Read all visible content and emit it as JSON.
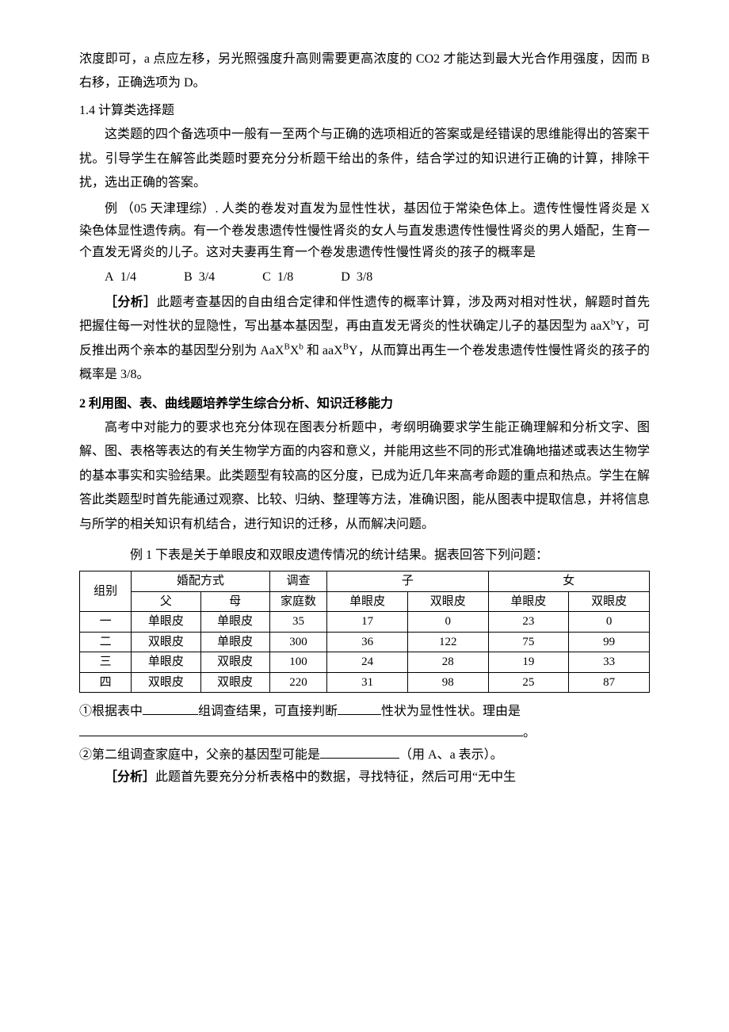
{
  "intro_continuation": "浓度即可，a 点应左移，另光照强度升高则需要更高浓度的 CO2 才能达到最大光合作用强度，因而 B 右移，正确选项为 D。",
  "sec14_title": "1.4 计算类选择题",
  "sec14_para": "这类题的四个备选项中一般有一至两个与正确的选项相近的答案或是经错误的思维能得出的答案干扰。引导学生在解答此类题时要充分分析题干给出的条件，结合学过的知识进行正确的计算，排除干扰，选出正确的答案。",
  "ex14_lead": "例 （05 天津理综）. 人类的卷发对直发为显性性状，基因位于常染色体上。遗传性慢性肾炎是 X 染色体显性遗传病。有一个卷发患遗传性慢性肾炎的女人与直发患遗传性慢性肾炎的男人婚配，生育一个直发无肾炎的儿子。这对夫妻再生育一个卷发患遗传性慢性肾炎的孩子的概率是",
  "options": {
    "A": "1/4",
    "B": "3/4",
    "C": "1/8",
    "D": "3/8"
  },
  "analysis_label": "［分析］",
  "ex14_analysis_pre": "此题考查基因的自由组合定律和伴性遗传的概率计算，涉及两对相对性状，解题时首先把握住每一对性状的显隐性，写出基本基因型，再由直发无肾炎的性状确定儿子的基因型为 aaX",
  "ex14_analysis_mid1": "Y，可反推出两个亲本的基因型分别为 AaX",
  "ex14_analysis_mid2": "X",
  "ex14_analysis_mid3": " 和 aaX",
  "ex14_analysis_end": "Y，从而算出再生一个卷发患遗传性慢性肾炎的孩子的概率是 3/8。",
  "sup_b": "b",
  "sup_B": "B",
  "sec2_title": "2 利用图、表、曲线题培养学生综合分析、知识迁移能力",
  "sec2_para": "高考中对能力的要求也充分体现在图表分析题中，考纲明确要求学生能正确理解和分析文字、图解、图、表格等表达的有关生物学方面的内容和意义，并能用这些不同的形式准确地描述或表达生物学的基本事实和实验结果。此类题型有较高的区分度，已成为近几年来高考命题的重点和热点。学生在解答此类题型时首先能通过观察、比较、归纳、整理等方法，准确识图，能从图表中提取信息，并将信息与所学的相关知识有机结合，进行知识的迁移，从而解决问题。",
  "table_caption": "例 1  下表是关于单眼皮和双眼皮遗传情况的统计结果。据表回答下列问题：",
  "table": {
    "header_row1": [
      "组别",
      "婚配方式",
      "调查",
      "子",
      "女"
    ],
    "header_row2": [
      "父",
      "母",
      "家庭数",
      "单眼皮",
      "双眼皮",
      "单眼皮",
      "双眼皮"
    ],
    "rows": [
      [
        "一",
        "单眼皮",
        "单眼皮",
        "35",
        "17",
        "0",
        "23",
        "0"
      ],
      [
        "二",
        "双眼皮",
        "单眼皮",
        "300",
        "36",
        "122",
        "75",
        "99"
      ],
      [
        "三",
        "单眼皮",
        "双眼皮",
        "100",
        "24",
        "28",
        "19",
        "33"
      ],
      [
        "四",
        "双眼皮",
        "双眼皮",
        "220",
        "31",
        "98",
        "25",
        "87"
      ]
    ],
    "col_widths": [
      "9%",
      "12%",
      "12%",
      "10%",
      "14%",
      "14%",
      "14%",
      "14%"
    ]
  },
  "q1_a": "①根据表中",
  "q1_b": "组调查结果，可直接判断",
  "q1_c": "性状为显性性状。理由是",
  "q1_end": "。",
  "q2_a": "②第二组调查家庭中，父亲的基因型可能是",
  "q2_b": "（用 A、a 表示）。",
  "final_analysis": "此题首先要充分分析表格中的数据，寻找特征，然后可用“无中生",
  "blank_widths": {
    "short": "70px",
    "med": "55px",
    "long": "560px",
    "q2": "100px"
  }
}
